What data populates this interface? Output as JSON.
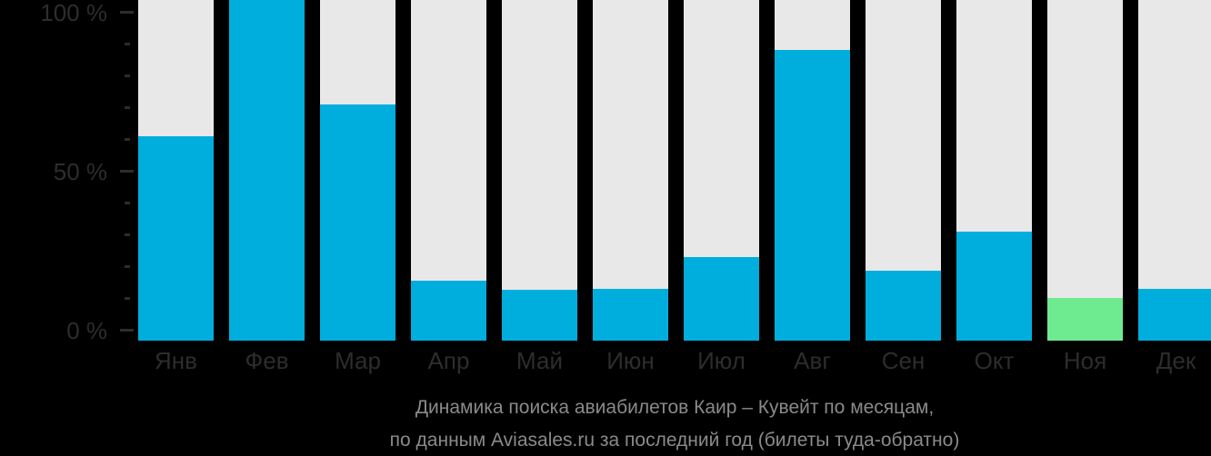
{
  "chart_data": {
    "type": "bar",
    "title": "Динамика поиска авиабилетов Каир – Кувейт по месяцам,",
    "subtitle": "по данным Aviasales.ru за последний год (билеты туда-обратно)",
    "categories": [
      "Янв",
      "Фев",
      "Мар",
      "Апр",
      "Май",
      "Июн",
      "Июл",
      "Авг",
      "Сен",
      "Окт",
      "Ноя",
      "Дек"
    ],
    "values": [
      61,
      100,
      71,
      15.5,
      12.5,
      13,
      23,
      88,
      18.5,
      31,
      10,
      13
    ],
    "unit": "%",
    "xlabel": "",
    "ylabel": "",
    "ylim": [
      0,
      100
    ],
    "y_ticks": [
      {
        "label": "100 %",
        "value": 100
      },
      {
        "label": "50 %",
        "value": 50
      },
      {
        "label": "0 %",
        "value": 0
      }
    ],
    "minor_tick_step": 10,
    "highlight_index": 10,
    "highlight_category": "Ноя",
    "legend": "none",
    "grid": "off",
    "colors": {
      "background": "#000000",
      "bar": "#00aede",
      "highlight_bar": "#6eeb90",
      "bar_track": "#e8e8e8",
      "axis_text": "#2d2d2d",
      "tick": "#2d2d2d",
      "caption_text": "#8a8a8a"
    }
  }
}
